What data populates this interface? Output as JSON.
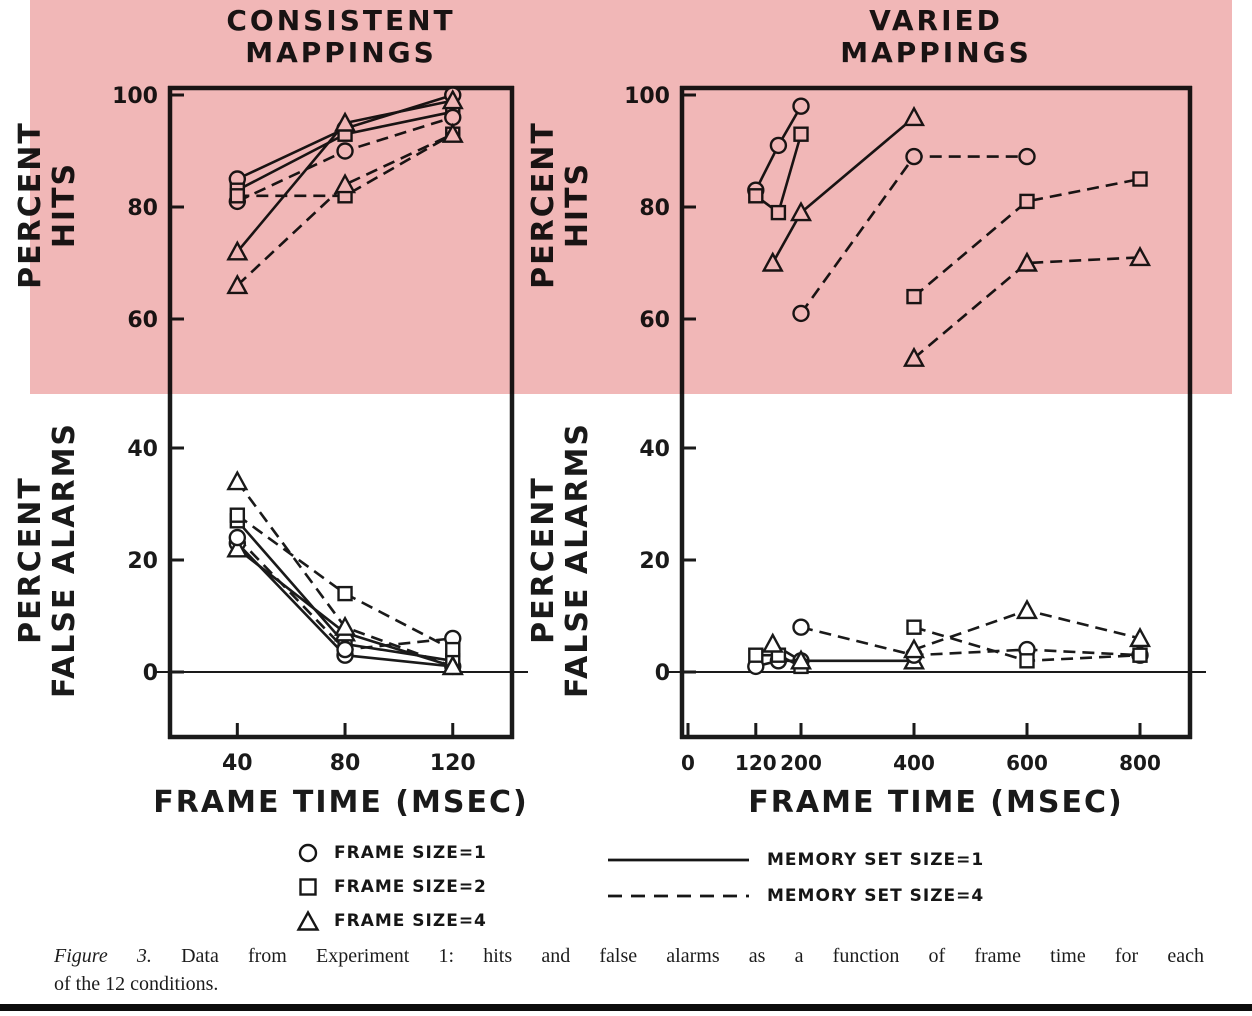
{
  "style": {
    "ink": "#1a1a1a",
    "highlight": "#f1b7b7",
    "background": "#ffffff"
  },
  "legend": {
    "frame_sizes": [
      {
        "marker": "circle",
        "label": "FRAME SIZE=1"
      },
      {
        "marker": "square",
        "label": "FRAME SIZE=2"
      },
      {
        "marker": "triangle",
        "label": "FRAME SIZE=4"
      }
    ],
    "memory_set_sizes": [
      {
        "line": "solid",
        "label": "MEMORY SET SIZE=1"
      },
      {
        "line": "dashed",
        "label": "MEMORY SET SIZE=4"
      }
    ]
  },
  "caption": {
    "figure_label": "Figure 3.",
    "line1_rest": "Data from Experiment 1: hits and false alarms as a function of frame time for each",
    "line2": "of the 12 conditions.",
    "full_text": "Figure 3. Data from Experiment 1: hits and false alarms as a function of frame time for each of the 12 conditions."
  },
  "chart_data": [
    {
      "id": "cm-hits",
      "type": "line",
      "title": "CONSISTENT MAPPINGS",
      "title_lines": [
        "CONSISTENT",
        "MAPPINGS"
      ],
      "ylabel": "PERCENT HITS",
      "ylabel_lines": [
        "PERCENT",
        "HITS"
      ],
      "y_ticks": [
        100,
        80,
        60
      ],
      "ylim": [
        50,
        101
      ],
      "xlim": [
        15,
        142
      ],
      "grid": false,
      "legend_position": "bottom",
      "series": [
        {
          "name": "Frame size 1, memory set size 1",
          "frame_size": 1,
          "memory_set_size": 1,
          "marker": "circle",
          "line": "solid",
          "points": [
            [
              40,
              85
            ],
            [
              80,
              94
            ],
            [
              120,
              100
            ]
          ]
        },
        {
          "name": "Frame size 2, memory set size 1",
          "frame_size": 2,
          "memory_set_size": 1,
          "marker": "square",
          "line": "solid",
          "points": [
            [
              40,
              83
            ],
            [
              80,
              93
            ],
            [
              120,
              97
            ]
          ]
        },
        {
          "name": "Frame size 4, memory set size 1",
          "frame_size": 4,
          "memory_set_size": 1,
          "marker": "triangle",
          "line": "solid",
          "points": [
            [
              40,
              72
            ],
            [
              80,
              95
            ],
            [
              120,
              99
            ]
          ]
        },
        {
          "name": "Frame size 1, memory set size 4",
          "frame_size": 1,
          "memory_set_size": 4,
          "marker": "circle",
          "line": "dashed",
          "points": [
            [
              40,
              81
            ],
            [
              80,
              90
            ],
            [
              120,
              96
            ]
          ]
        },
        {
          "name": "Frame size 2, memory set size 4",
          "frame_size": 2,
          "memory_set_size": 4,
          "marker": "square",
          "line": "dashed",
          "points": [
            [
              40,
              82
            ],
            [
              80,
              82
            ],
            [
              120,
              93
            ]
          ]
        },
        {
          "name": "Frame size 4, memory set size 4",
          "frame_size": 4,
          "memory_set_size": 4,
          "marker": "triangle",
          "line": "dashed",
          "points": [
            [
              40,
              66
            ],
            [
              80,
              84
            ],
            [
              120,
              93
            ]
          ]
        }
      ]
    },
    {
      "id": "cm-false-alarms",
      "type": "line",
      "ylabel": "PERCENT FALSE ALARMS",
      "ylabel_lines": [
        "PERCENT",
        "FALSE ALARMS"
      ],
      "xlabel": "FRAME TIME (MSEC)",
      "x_ticks": [
        40,
        80,
        120
      ],
      "y_ticks": [
        40,
        20,
        0
      ],
      "ylim": [
        -10,
        46
      ],
      "xlim": [
        15,
        142
      ],
      "grid": false,
      "series": [
        {
          "name": "Frame size 1, memory set size 1",
          "frame_size": 1,
          "memory_set_size": 1,
          "marker": "circle",
          "line": "solid",
          "points": [
            [
              40,
              23
            ],
            [
              80,
              3
            ],
            [
              120,
              1
            ]
          ]
        },
        {
          "name": "Frame size 2, memory set size 1",
          "frame_size": 2,
          "memory_set_size": 1,
          "marker": "square",
          "line": "solid",
          "points": [
            [
              40,
              27
            ],
            [
              80,
              5
            ],
            [
              120,
              2
            ]
          ]
        },
        {
          "name": "Frame size 4, memory set size 1",
          "frame_size": 4,
          "memory_set_size": 1,
          "marker": "triangle",
          "line": "solid",
          "points": [
            [
              40,
              22
            ],
            [
              80,
              7
            ],
            [
              120,
              1
            ]
          ]
        },
        {
          "name": "Frame size 1, memory set size 4",
          "frame_size": 1,
          "memory_set_size": 4,
          "marker": "circle",
          "line": "dashed",
          "points": [
            [
              40,
              24
            ],
            [
              80,
              4
            ],
            [
              120,
              6
            ]
          ]
        },
        {
          "name": "Frame size 2, memory set size 4",
          "frame_size": 2,
          "memory_set_size": 4,
          "marker": "square",
          "line": "dashed",
          "points": [
            [
              40,
              28
            ],
            [
              80,
              14
            ],
            [
              120,
              4
            ]
          ]
        },
        {
          "name": "Frame size 4, memory set size 4",
          "frame_size": 4,
          "memory_set_size": 4,
          "marker": "triangle",
          "line": "dashed",
          "points": [
            [
              40,
              34
            ],
            [
              80,
              8
            ],
            [
              120,
              1
            ]
          ]
        }
      ]
    },
    {
      "id": "vm-hits",
      "type": "line",
      "title": "VARIED MAPPINGS",
      "title_lines": [
        "VARIED",
        "MAPPINGS"
      ],
      "ylabel": "PERCENT HITS",
      "ylabel_lines": [
        "PERCENT",
        "HITS"
      ],
      "y_ticks": [
        100,
        80,
        60
      ],
      "ylim": [
        50,
        101
      ],
      "xlim": [
        0,
        890
      ],
      "grid": false,
      "series": [
        {
          "name": "Frame size 1, memory set size 1",
          "frame_size": 1,
          "memory_set_size": 1,
          "marker": "circle",
          "line": "solid",
          "points": [
            [
              120,
              83
            ],
            [
              160,
              91
            ],
            [
              200,
              98
            ]
          ]
        },
        {
          "name": "Frame size 2, memory set size 1",
          "frame_size": 2,
          "memory_set_size": 1,
          "marker": "square",
          "line": "solid",
          "points": [
            [
              120,
              82
            ],
            [
              160,
              79
            ],
            [
              200,
              93
            ]
          ]
        },
        {
          "name": "Frame size 4, memory set size 1",
          "frame_size": 4,
          "memory_set_size": 1,
          "marker": "triangle",
          "line": "solid",
          "points": [
            [
              150,
              70
            ],
            [
              200,
              79
            ],
            [
              400,
              96
            ]
          ]
        },
        {
          "name": "Frame size 1, memory set size 4",
          "frame_size": 1,
          "memory_set_size": 4,
          "marker": "circle",
          "line": "dashed",
          "points": [
            [
              200,
              61
            ],
            [
              400,
              89
            ],
            [
              600,
              89
            ]
          ]
        },
        {
          "name": "Frame size 2, memory set size 4",
          "frame_size": 2,
          "memory_set_size": 4,
          "marker": "square",
          "line": "dashed",
          "points": [
            [
              400,
              64
            ],
            [
              600,
              81
            ],
            [
              800,
              85
            ]
          ]
        },
        {
          "name": "Frame size 4, memory set size 4",
          "frame_size": 4,
          "memory_set_size": 4,
          "marker": "triangle",
          "line": "dashed",
          "points": [
            [
              400,
              53
            ],
            [
              600,
              70
            ],
            [
              800,
              71
            ]
          ]
        }
      ]
    },
    {
      "id": "vm-false-alarms",
      "type": "line",
      "ylabel": "PERCENT FALSE ALARMS",
      "ylabel_lines": [
        "PERCENT",
        "FALSE ALARMS"
      ],
      "xlabel": "FRAME TIME (MSEC)",
      "x_ticks": [
        0,
        120,
        200,
        400,
        600,
        800
      ],
      "y_ticks": [
        40,
        20,
        0
      ],
      "ylim": [
        -10,
        46
      ],
      "xlim": [
        0,
        890
      ],
      "grid": false,
      "series": [
        {
          "name": "Frame size 1, memory set size 1",
          "frame_size": 1,
          "memory_set_size": 1,
          "marker": "circle",
          "line": "solid",
          "points": [
            [
              120,
              1
            ],
            [
              160,
              2
            ],
            [
              200,
              2
            ]
          ]
        },
        {
          "name": "Frame size 2, memory set size 1",
          "frame_size": 2,
          "memory_set_size": 1,
          "marker": "square",
          "line": "solid",
          "points": [
            [
              120,
              3
            ],
            [
              160,
              3
            ],
            [
              200,
              1
            ]
          ]
        },
        {
          "name": "Frame size 4, memory set size 1",
          "frame_size": 4,
          "memory_set_size": 1,
          "marker": "triangle",
          "line": "solid",
          "points": [
            [
              150,
              5
            ],
            [
              200,
              2
            ],
            [
              400,
              2
            ]
          ]
        },
        {
          "name": "Frame size 1, memory set size 4",
          "frame_size": 1,
          "memory_set_size": 4,
          "marker": "circle",
          "line": "dashed",
          "points": [
            [
              200,
              8
            ],
            [
              400,
              3
            ],
            [
              600,
              4
            ],
            [
              800,
              3
            ]
          ]
        },
        {
          "name": "Frame size 2, memory set size 4",
          "frame_size": 2,
          "memory_set_size": 4,
          "marker": "square",
          "line": "dashed",
          "points": [
            [
              400,
              8
            ],
            [
              600,
              2
            ],
            [
              800,
              3
            ]
          ]
        },
        {
          "name": "Frame size 4, memory set size 4",
          "frame_size": 4,
          "memory_set_size": 4,
          "marker": "triangle",
          "line": "dashed",
          "points": [
            [
              400,
              4
            ],
            [
              600,
              11
            ],
            [
              800,
              6
            ]
          ]
        }
      ]
    }
  ]
}
